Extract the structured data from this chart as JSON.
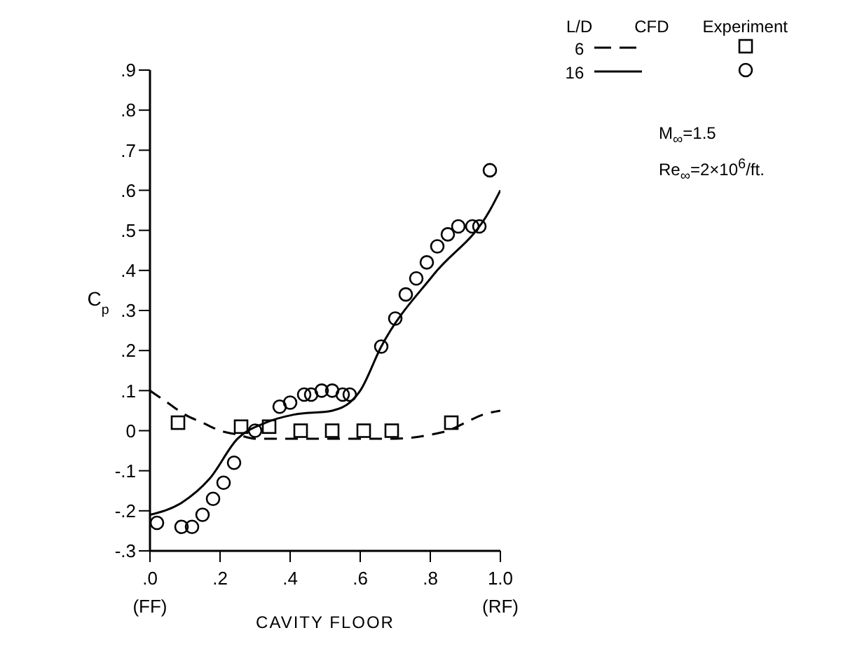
{
  "chart_data": {
    "type": "line",
    "xlabel": "CAVITY FLOOR",
    "ylabel": "C$_{p}$",
    "legend_title": "L/D",
    "legend": "top right",
    "grid": false,
    "annotations": [
      "CFD",
      "Experiment",
      "M$_{∞}$=1.5",
      "Re$_{∞}$=2×10$^{6}$/ft."
    ],
    "xlim": [
      0,
      1
    ],
    "xticks": [
      {
        "value": 0,
        "label": ".0\n(FF)"
      },
      {
        "value": 0.2,
        "label": ".2"
      },
      {
        "value": 0.4,
        "label": ".4"
      },
      {
        "value": 0.6,
        "label": ".6"
      },
      {
        "value": 0.8,
        "label": ".8"
      },
      {
        "value": 1,
        "label": "1.0\n(RF)"
      }
    ],
    "ylim": [
      -0.3,
      0.9
    ],
    "yticks": [
      {
        "value": -0.3,
        "label": "-.3"
      },
      {
        "value": -0.2,
        "label": "-.2"
      },
      {
        "value": -0.1,
        "label": "-.1"
      },
      0,
      {
        "value": 0.1,
        "label": ".1"
      },
      {
        "value": 0.2,
        "label": ".2"
      },
      {
        "value": 0.3,
        "label": ".3"
      },
      {
        "value": 0.4,
        "label": ".4"
      },
      {
        "value": 0.5,
        "label": ".5"
      },
      {
        "value": 0.6,
        "label": ".6"
      },
      {
        "value": 0.7,
        "label": ".7"
      },
      {
        "value": 0.8,
        "label": ".8"
      },
      {
        "value": 0.9,
        "label": ".9"
      }
    ],
    "series": [
      {
        "name": "6",
        "line_style": "dashed",
        "marker": "none",
        "color": "#000000",
        "x": [
          0,
          0.05,
          0.1,
          0.15,
          0.2,
          0.25,
          0.3,
          0.4,
          0.5,
          0.6,
          0.7,
          0.8,
          0.85,
          0.9,
          0.95,
          1
        ],
        "values": [
          0.1,
          0.07,
          0.04,
          0.02,
          0,
          -0.01,
          -0.02,
          -0.02,
          -0.02,
          -0.02,
          -0.02,
          -0.01,
          0,
          0.02,
          0.04,
          0.05
        ]
      },
      {
        "name": "16",
        "line_style": "solid",
        "marker": "none",
        "color": "#000000",
        "x": [
          0,
          0.09,
          0.17,
          0.25,
          0.33,
          0.41,
          0.52,
          0.57,
          0.6,
          0.66,
          0.81,
          0.97,
          1
        ],
        "values": [
          -0.21,
          -0.18,
          -0.12,
          -0.02,
          0.02,
          0.04,
          0.05,
          0.07,
          0.1,
          0.21,
          0.39,
          0.55,
          0.6
        ]
      },
      {
        "type": "scatter",
        "marker": "square",
        "color": "#000000",
        "x": [
          0.08,
          0.26,
          0.34,
          0.43,
          0.52,
          0.61,
          0.69,
          0.86
        ],
        "values": [
          0.02,
          0.01,
          0.01,
          0,
          0,
          0,
          0,
          0.02
        ]
      },
      {
        "type": "scatter",
        "marker": "circle",
        "color": "#000000",
        "x": [
          0.02,
          0.09,
          0.12,
          0.15,
          0.18,
          0.21,
          0.24,
          0.3,
          0.37,
          0.4,
          0.44,
          0.46,
          0.49,
          0.52,
          0.55,
          0.57,
          0.66,
          0.7,
          0.73,
          0.76,
          0.79,
          0.82,
          0.85,
          0.88,
          0.92,
          0.94,
          0.97
        ],
        "values": [
          -0.23,
          -0.24,
          -0.24,
          -0.21,
          -0.17,
          -0.13,
          -0.08,
          0,
          0.06,
          0.07,
          0.09,
          0.09,
          0.1,
          0.1,
          0.09,
          0.09,
          0.21,
          0.28,
          0.34,
          0.38,
          0.42,
          0.46,
          0.49,
          0.51,
          0.51,
          0.51,
          0.65
        ]
      }
    ]
  }
}
